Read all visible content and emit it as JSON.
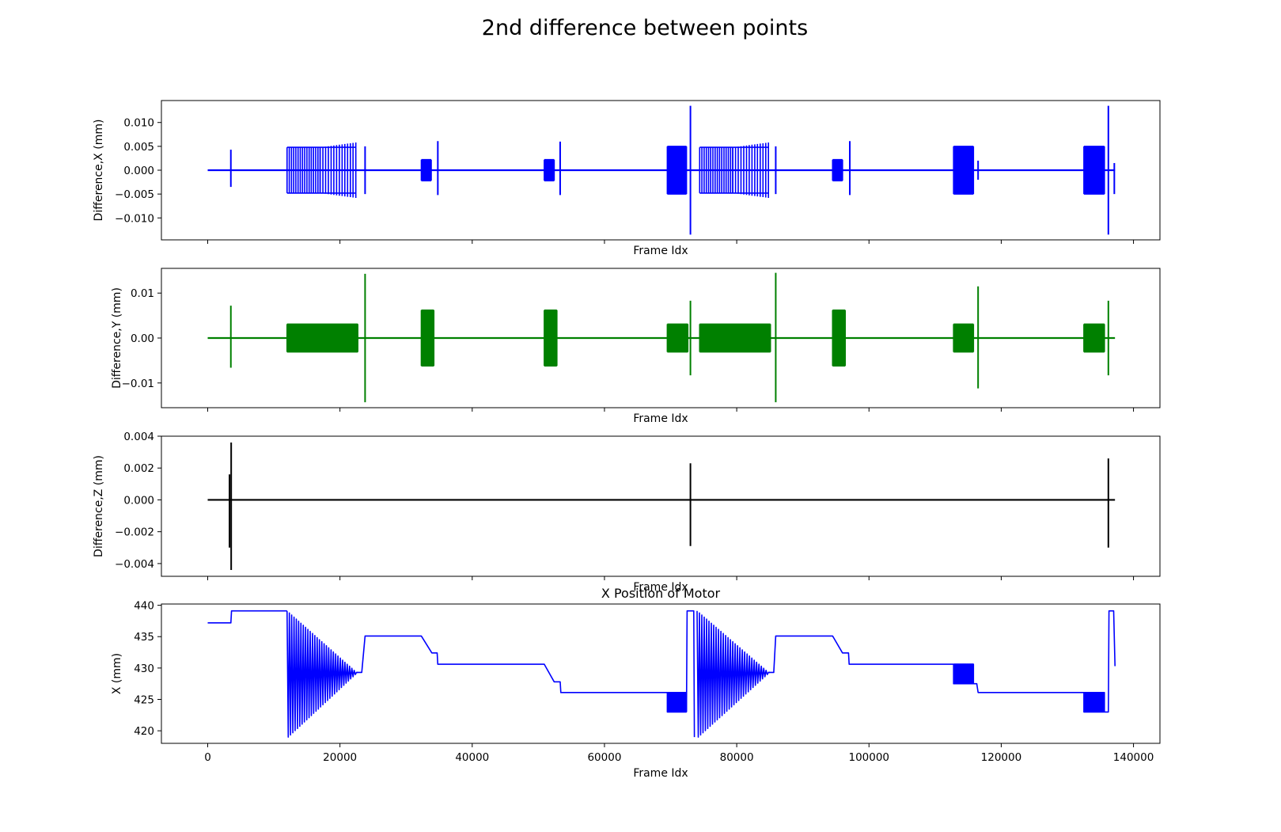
{
  "figure_title": "2nd difference between points",
  "chart_data": [
    {
      "type": "line",
      "title": "",
      "xlabel": "Frame Idx",
      "ylabel": "Difference,X (mm)",
      "xlim": [
        -7000,
        144000
      ],
      "ylim": [
        -0.0146,
        0.0146
      ],
      "xticks": [
        0,
        20000,
        40000,
        60000,
        80000,
        100000,
        120000,
        140000
      ],
      "xtick_labels": [
        "",
        "",
        "",
        "",
        "",
        "",
        "",
        ""
      ],
      "yticks": [
        -0.01,
        -0.005,
        0.0,
        0.005,
        0.01
      ],
      "ytick_labels": [
        "−0.010",
        "−0.005",
        "0.000",
        "0.005",
        "0.010"
      ],
      "grid": false,
      "series": [
        {
          "color": "#0000ff",
          "baseline": 0,
          "range": [
            0,
            137200
          ],
          "oscillation_bands": [
            [
              12000,
              17000,
              0.0048,
              0.0048,
              16
            ],
            [
              17000,
              22400,
              0.0048,
              0.0058,
              14
            ],
            [
              32300,
              33800,
              0.0022,
              0.0022,
              10
            ],
            [
              50900,
              52400,
              0.0022,
              0.0022,
              10
            ],
            [
              69500,
              72400,
              0.005,
              0.005,
              40
            ],
            [
              74400,
              79400,
              0.0048,
              0.0048,
              16
            ],
            [
              79400,
              84800,
              0.0048,
              0.0058,
              14
            ],
            [
              94500,
              96000,
              0.0022,
              0.0022,
              10
            ],
            [
              112800,
              115800,
              0.005,
              0.005,
              40
            ],
            [
              132500,
              135600,
              0.005,
              0.005,
              40
            ]
          ],
          "spikes": [
            [
              3500,
              0.0043,
              -0.0035
            ],
            [
              23800,
              0.005,
              -0.005
            ],
            [
              34800,
              0.0061,
              -0.0052
            ],
            [
              53300,
              0.006,
              -0.0052
            ],
            [
              73000,
              0.0135,
              -0.0135
            ],
            [
              85900,
              0.005,
              -0.005
            ],
            [
              97100,
              0.0061,
              -0.0052
            ],
            [
              116500,
              0.002,
              -0.002
            ],
            [
              136200,
              0.0135,
              -0.0135
            ],
            [
              137100,
              0.0015,
              -0.005
            ]
          ]
        }
      ]
    },
    {
      "type": "line",
      "title": "",
      "xlabel": "Frame Idx",
      "ylabel": "Difference,Y (mm)",
      "xlim": [
        -7000,
        144000
      ],
      "ylim": [
        -0.0155,
        0.0155
      ],
      "xticks": [
        0,
        20000,
        40000,
        60000,
        80000,
        100000,
        120000,
        140000
      ],
      "xtick_labels": [
        "",
        "",
        "",
        "",
        "",
        "",
        "",
        ""
      ],
      "yticks": [
        -0.01,
        0.0,
        0.01
      ],
      "ytick_labels": [
        "−0.01",
        "0.00",
        "0.01"
      ],
      "grid": false,
      "series": [
        {
          "color": "#008000",
          "baseline": 0,
          "range": [
            0,
            137200
          ],
          "oscillation_bands": [
            [
              12000,
              22700,
              0.0031,
              0.0031,
              60
            ],
            [
              32300,
              34200,
              0.0062,
              0.0062,
              12
            ],
            [
              50900,
              52800,
              0.0062,
              0.0062,
              12
            ],
            [
              69500,
              72600,
              0.0031,
              0.0031,
              40
            ],
            [
              74400,
              85100,
              0.0031,
              0.0031,
              60
            ],
            [
              94500,
              96400,
              0.0062,
              0.0062,
              12
            ],
            [
              112800,
              115800,
              0.0031,
              0.0031,
              40
            ],
            [
              132500,
              135600,
              0.0031,
              0.0031,
              40
            ]
          ],
          "spikes": [
            [
              3500,
              0.0072,
              -0.0066
            ],
            [
              23800,
              0.0143,
              -0.0143
            ],
            [
              73000,
              0.0083,
              -0.0083
            ],
            [
              85900,
              0.0145,
              -0.0143
            ],
            [
              116500,
              0.0115,
              -0.0112
            ],
            [
              136200,
              0.0083,
              -0.0083
            ]
          ]
        }
      ]
    },
    {
      "type": "line",
      "title": "",
      "xlabel": "Frame Idx",
      "ylabel": "Difference,Z (mm)",
      "xlim": [
        -7000,
        144000
      ],
      "ylim": [
        -0.0048,
        0.004
      ],
      "xticks": [
        0,
        20000,
        40000,
        60000,
        80000,
        100000,
        120000,
        140000
      ],
      "xtick_labels": [
        "",
        "",
        "",
        "",
        "",
        "",
        "",
        ""
      ],
      "yticks": [
        -0.004,
        -0.002,
        0.0,
        0.002,
        0.004
      ],
      "ytick_labels": [
        "−0.004",
        "−0.002",
        "0.000",
        "0.002",
        "0.004"
      ],
      "grid": false,
      "series": [
        {
          "color": "#000000",
          "baseline": 0,
          "range": [
            0,
            137200
          ],
          "oscillation_bands": [],
          "spikes": [
            [
              3300,
              0.0016,
              -0.003
            ],
            [
              3550,
              0.0036,
              -0.0044
            ],
            [
              73000,
              0.0023,
              -0.0029
            ],
            [
              136200,
              0.0026,
              -0.003
            ]
          ]
        }
      ]
    },
    {
      "type": "line",
      "title": "X Position of Motor",
      "xlabel": "Frame Idx",
      "ylabel": "X (mm)",
      "xlim": [
        -7000,
        144000
      ],
      "ylim": [
        418,
        440.2
      ],
      "xticks": [
        0,
        20000,
        40000,
        60000,
        80000,
        100000,
        120000,
        140000
      ],
      "xtick_labels": [
        "0",
        "20000",
        "40000",
        "60000",
        "80000",
        "100000",
        "120000",
        "140000"
      ],
      "yticks": [
        420,
        425,
        430,
        435,
        440
      ],
      "ytick_labels": [
        "420",
        "425",
        "430",
        "435",
        "440"
      ],
      "grid": false,
      "series": [
        {
          "color": "#0000ff",
          "segments": [
            [
              0,
              437.2
            ],
            [
              3500,
              437.2
            ],
            [
              3600,
              439.1
            ],
            [
              12000,
              439.1
            ]
          ],
          "decaying_oscillations": [
            [
              12000,
              22500,
              439.1,
              419.0,
              429.3,
              30
            ],
            [
              74000,
              84800,
              439.1,
              419.0,
              429.3,
              30
            ]
          ],
          "after_segments": [
            [
              [
                22500,
                429.3
              ],
              [
                23300,
                429.3
              ],
              [
                23800,
                435.1
              ],
              [
                32300,
                435.1
              ],
              [
                33900,
                432.4
              ],
              [
                34700,
                432.4
              ],
              [
                34800,
                430.6
              ],
              [
                50900,
                430.6
              ],
              [
                52400,
                427.8
              ],
              [
                53300,
                427.8
              ],
              [
                53400,
                426.1
              ],
              [
                69500,
                426.1
              ]
            ],
            [
              [
                72400,
                423.0
              ],
              [
                72500,
                439.1
              ],
              [
                73500,
                439.1
              ],
              [
                73600,
                419.0
              ]
            ],
            [
              [
                84800,
                429.3
              ],
              [
                85600,
                429.3
              ],
              [
                85900,
                435.1
              ],
              [
                94500,
                435.1
              ],
              [
                96000,
                432.4
              ],
              [
                96900,
                432.4
              ],
              [
                97000,
                430.6
              ],
              [
                112800,
                430.6
              ]
            ],
            [
              [
                115800,
                427.5
              ],
              [
                116300,
                427.5
              ],
              [
                116500,
                426.1
              ],
              [
                132500,
                426.1
              ]
            ],
            [
              [
                135600,
                423.0
              ],
              [
                136200,
                423.0
              ],
              [
                136300,
                439.1
              ],
              [
                137000,
                439.1
              ],
              [
                137200,
                430.3
              ]
            ]
          ],
          "square_bands": [
            [
              69500,
              72400,
              426.1,
              423.0,
              40
            ],
            [
              112800,
              115800,
              430.6,
              427.5,
              40
            ],
            [
              132500,
              135600,
              426.1,
              423.0,
              40
            ]
          ]
        }
      ]
    }
  ]
}
